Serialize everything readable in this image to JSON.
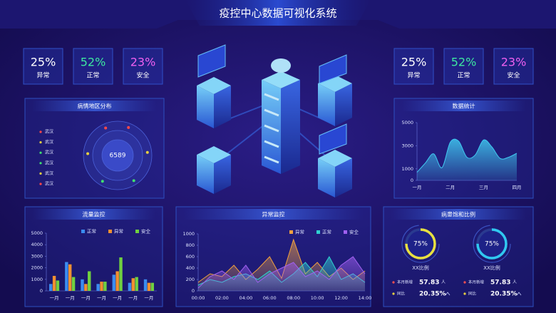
{
  "header": {
    "title": "疫控中心数据可视化系统"
  },
  "left_stats": [
    {
      "value": "25%",
      "label": "异常",
      "color": "#ffffff"
    },
    {
      "value": "52%",
      "label": "正常",
      "color": "#3de8a0"
    },
    {
      "value": "23%",
      "label": "安全",
      "color": "#f060f0"
    }
  ],
  "right_stats": [
    {
      "value": "25%",
      "label": "异常",
      "color": "#ffffff"
    },
    {
      "value": "52%",
      "label": "正常",
      "color": "#3de8a0"
    },
    {
      "value": "23%",
      "label": "安全",
      "color": "#f060f0"
    }
  ],
  "region_panel": {
    "title": "病情地区分布",
    "center": "6589",
    "items": [
      {
        "label": "武汉",
        "color": "#ff4848"
      },
      {
        "label": "武汉",
        "color": "#e8d040"
      },
      {
        "label": "武汉",
        "color": "#40e070"
      },
      {
        "label": "武汉",
        "color": "#40e070"
      },
      {
        "label": "武汉",
        "color": "#e8d040"
      },
      {
        "label": "武汉",
        "color": "#ff4848"
      }
    ]
  },
  "chart_data": [
    {
      "type": "area",
      "title": "数据统计",
      "x": [
        0,
        0.25,
        0.5,
        0.75,
        1,
        1.25,
        1.5,
        1.75,
        2,
        2.25,
        2.5,
        2.75,
        3
      ],
      "series": [
        {
          "color": "#40c8f0",
          "values": [
            700,
            1500,
            2300,
            1100,
            3300,
            3400,
            2000,
            2200,
            3500,
            2900,
            1900,
            2000,
            2350
          ]
        }
      ],
      "xlim": [
        0,
        3
      ],
      "xticks": [
        {
          "value": 0,
          "label": "一月"
        },
        {
          "value": 1,
          "label": "二月"
        },
        {
          "value": 2,
          "label": "三月"
        },
        {
          "value": 3,
          "label": "四月"
        }
      ],
      "ylim": [
        0,
        5000
      ],
      "yticks": [
        0,
        1000,
        3000,
        5000
      ]
    },
    {
      "type": "bar",
      "title": "流量监控",
      "categories": [
        "一月",
        "一月",
        "一月",
        "一月",
        "一月",
        "一月",
        "一月"
      ],
      "series": [
        {
          "name": "正常",
          "color": "#3a8cf0",
          "values": [
            600,
            2500,
            1000,
            600,
            1400,
            700,
            1000
          ]
        },
        {
          "name": "异常",
          "color": "#f09030",
          "values": [
            1300,
            2300,
            600,
            800,
            1700,
            1100,
            700
          ]
        },
        {
          "name": "安全",
          "color": "#70d040",
          "values": [
            900,
            1200,
            1700,
            800,
            2900,
            1200,
            700
          ]
        }
      ],
      "ylim": [
        0,
        5000
      ],
      "yticks": [
        0,
        1000,
        2000,
        3000,
        4000,
        5000
      ],
      "legend": "top-right"
    },
    {
      "type": "area",
      "title": "异常监控",
      "categories": [
        "00:00",
        null,
        "02:00",
        null,
        "04:00",
        null,
        "06:00",
        null,
        "08:00",
        null,
        "10:00",
        null,
        "12:00",
        null,
        "14:00"
      ],
      "series": [
        {
          "name": "异常",
          "color": "#f0a040",
          "values": [
            150,
            300,
            250,
            450,
            200,
            380,
            600,
            220,
            900,
            300,
            500,
            250,
            400,
            200,
            350
          ]
        },
        {
          "name": "正常",
          "color": "#30d0d0",
          "values": [
            100,
            200,
            150,
            250,
            300,
            200,
            350,
            150,
            300,
            500,
            250,
            600,
            200,
            300,
            150
          ]
        },
        {
          "name": "安全",
          "color": "#a060f0",
          "values": [
            50,
            250,
            350,
            200,
            450,
            150,
            300,
            400,
            500,
            250,
            350,
            200,
            450,
            600,
            300
          ]
        }
      ],
      "ylim": [
        0,
        1000
      ],
      "yticks": [
        0,
        200,
        400,
        600,
        800,
        1000
      ],
      "legend": "top-right"
    }
  ],
  "ratio_panel": {
    "title": "病患饱和比例",
    "gauges": [
      {
        "value": 75,
        "value_label": "75%",
        "name": "XX比例",
        "color": "#e8e040"
      },
      {
        "value": 75,
        "value_label": "75%",
        "name": "XX比例",
        "color": "#30c8f0"
      }
    ],
    "groups": [
      {
        "new_label": "本月新增",
        "new_value": "57.83",
        "new_unit": "人",
        "yoy_label": "同比",
        "yoy_value": "20.35%"
      },
      {
        "new_label": "本月新增",
        "new_value": "57.83",
        "new_unit": "人",
        "yoy_label": "同比",
        "yoy_value": "20.35%"
      }
    ]
  }
}
